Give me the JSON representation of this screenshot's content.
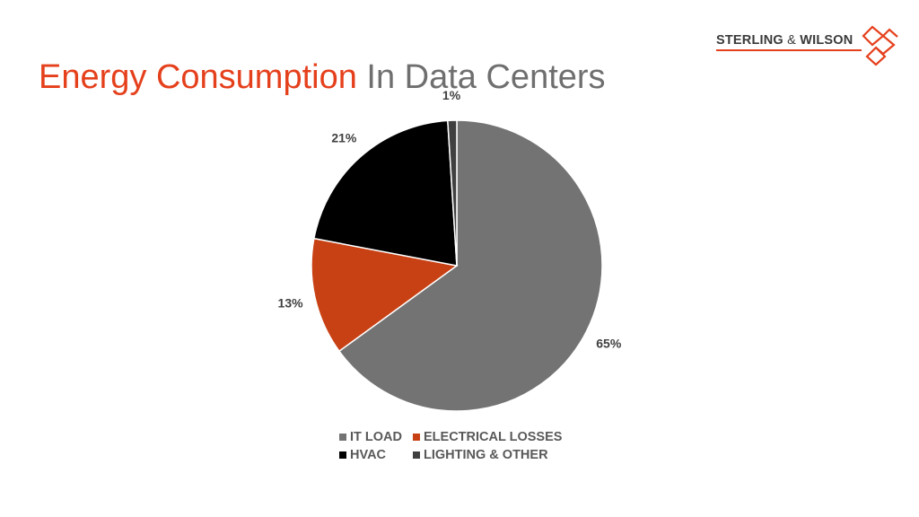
{
  "slide": {
    "title_accent": "Energy Consumption",
    "title_rest": " In Data Centers"
  },
  "logo": {
    "name": "STERLING",
    "amp": "&",
    "name2": "WILSON",
    "accent_color": "#e5401c"
  },
  "chart_data": {
    "type": "pie",
    "categories": [
      "IT LOAD",
      "ELECTRICAL LOSSES",
      "HVAC",
      "LIGHTING & OTHER"
    ],
    "values": [
      65,
      13,
      21,
      1
    ],
    "data_labels": [
      "65%",
      "13%",
      "21%",
      "1%"
    ],
    "colors": [
      "#737373",
      "#c84114",
      "#000000",
      "#404040"
    ],
    "start_angle_deg": 0,
    "direction": "clockwise",
    "legend_position": "bottom"
  }
}
